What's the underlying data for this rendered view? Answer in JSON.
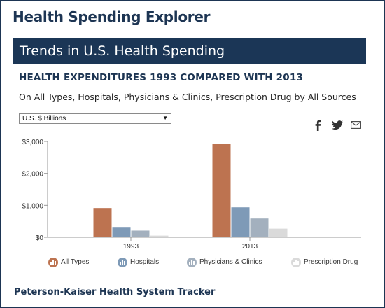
{
  "app": {
    "title": "Health Spending Explorer",
    "banner_title": "Trends in U.S. Health Spending",
    "footer": "Peterson-Kaiser Health System Tracker"
  },
  "controls": {
    "unit_select": {
      "selected": "U.S. $ Billions",
      "arrow": "▼"
    }
  },
  "share": {
    "icons": [
      "facebook-icon",
      "twitter-icon",
      "email-icon"
    ]
  },
  "colors": {
    "All Types": "#bd7350",
    "Hospitals": "#7e9ab7",
    "Physicians & Clinics": "#a3b0be",
    "Prescription Drug": "#dadada"
  },
  "chart_data": {
    "type": "bar",
    "title": "HEALTH EXPENDITURES 1993 COMPARED WITH 2013",
    "subtitle": "On All Types, Hospitals, Physicians & Clinics, Prescription Drug by All Sources",
    "categories": [
      "1993",
      "2013"
    ],
    "series": [
      {
        "name": "All Types",
        "values": [
          916,
          2919
        ]
      },
      {
        "name": "Hospitals",
        "values": [
          324,
          937
        ]
      },
      {
        "name": "Physicians & Clinics",
        "values": [
          209,
          587
        ]
      },
      {
        "name": "Prescription Drug",
        "values": [
          52,
          271
        ]
      }
    ],
    "yticks": [
      0,
      1000,
      2000,
      3000
    ],
    "ytick_labels": [
      "$0",
      "$1,000",
      "$2,000",
      "$3,000"
    ],
    "ylim": [
      0,
      3000
    ],
    "xlabel": "",
    "ylabel": "",
    "grid": false,
    "legend": "bottom"
  }
}
